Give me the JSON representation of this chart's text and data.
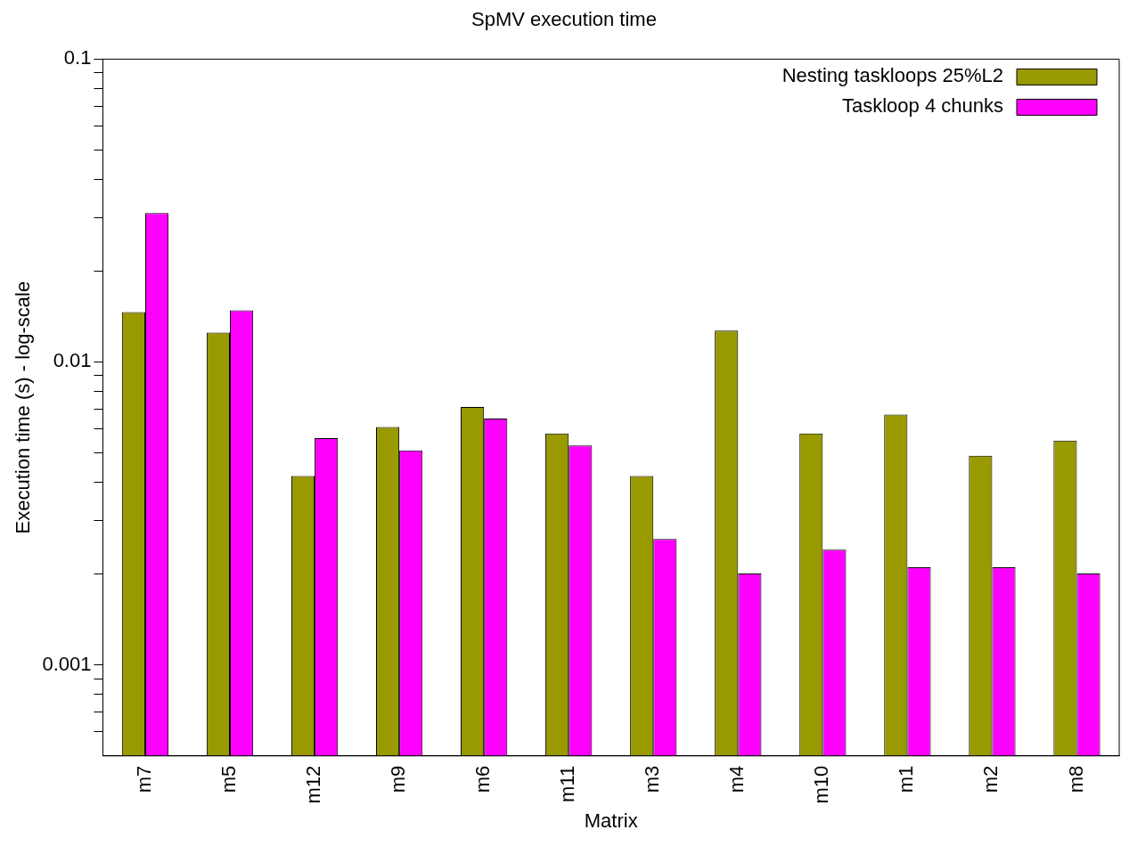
{
  "chart_data": {
    "type": "bar",
    "title": "SpMV execution time",
    "xlabel": "Matrix",
    "ylabel": "Execution time (s) - log-scale",
    "categories": [
      "m7",
      "m5",
      "m12",
      "m9",
      "m6",
      "m11",
      "m3",
      "m4",
      "m10",
      "m1",
      "m2",
      "m8"
    ],
    "series": [
      {
        "name": "Nesting taskloops 25%L2",
        "color": "#999900",
        "values": [
          0.0146,
          0.0125,
          0.0042,
          0.0061,
          0.0071,
          0.0058,
          0.0042,
          0.0127,
          0.0058,
          0.0067,
          0.0049,
          0.0055
        ]
      },
      {
        "name": "Taskloop 4 chunks",
        "color": "#ff00ff",
        "values": [
          0.031,
          0.0148,
          0.0056,
          0.0051,
          0.0065,
          0.0053,
          0.0026,
          0.002,
          0.0024,
          0.0021,
          0.0021,
          0.002
        ]
      }
    ],
    "log": "y",
    "ylim": [
      0.0005,
      0.1
    ],
    "yticks": [
      {
        "value": 0.0006,
        "label": null
      },
      {
        "value": 0.0007,
        "label": null
      },
      {
        "value": 0.0008,
        "label": null
      },
      {
        "value": 0.0009,
        "label": null
      },
      "0.001",
      {
        "value": 0.002,
        "label": null
      },
      {
        "value": 0.003,
        "label": null
      },
      {
        "value": 0.004,
        "label": null
      },
      {
        "value": 0.005,
        "label": null
      },
      {
        "value": 0.006,
        "label": null
      },
      {
        "value": 0.007,
        "label": null
      },
      {
        "value": 0.008,
        "label": null
      },
      {
        "value": 0.009,
        "label": null
      },
      0.01,
      {
        "value": 0.02,
        "label": null
      },
      {
        "value": 0.03,
        "label": null
      },
      {
        "value": 0.04,
        "label": null
      },
      {
        "value": 0.05,
        "label": null
      },
      {
        "value": 0.06,
        "label": null
      },
      {
        "value": 0.07,
        "label": null
      },
      {
        "value": 0.08,
        "label": null
      },
      {
        "value": 0.09,
        "label": null
      },
      0.1
    ],
    "grid": false,
    "legend": "top right"
  }
}
